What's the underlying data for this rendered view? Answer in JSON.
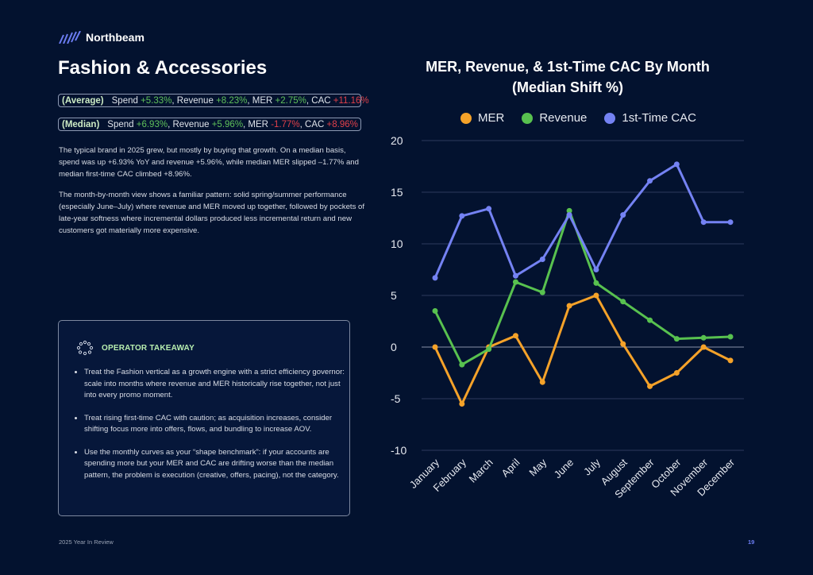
{
  "brand": {
    "name": "Northbeam",
    "logo_icon": "slashed-bars-logo",
    "logo_color": "#6b7cf2"
  },
  "title": "Fashion & Accessories",
  "stats": [
    {
      "tag": "(Average)",
      "spend_label": "Spend",
      "spend": "+5.33%",
      "revenue_label": ", Revenue",
      "revenue": "+8.23%",
      "mer_label": ", MER",
      "mer": "+2.75%",
      "cac_label": ", CAC",
      "cac": "+11.16%"
    },
    {
      "tag": "(Median)",
      "spend_label": "Spend",
      "spend": "+6.93%",
      "revenue_label": ", Revenue",
      "revenue": "+5.96%",
      "mer_label": ", MER",
      "mer": "-1.77%",
      "cac_label": ", CAC",
      "cac": "+8.96%"
    }
  ],
  "paragraphs": [
    "The typical brand in 2025 grew, but mostly by buying that growth. On a median basis, spend was up +6.93% YoY and revenue +5.96%, while median MER slipped –1.77% and median first-time CAC climbed +8.96%.",
    "The month-by-month view shows a familiar pattern: solid spring/summer performance (especially June–July) where revenue and MER moved up together, followed by pockets of late-year softness where incremental dollars produced less incremental return and new customers got materially more expensive."
  ],
  "takeaway": {
    "icon": "dotted-circle-icon",
    "title": "OPERATOR TAKEAWAY",
    "items": [
      "Treat the Fashion vertical as a growth engine with a strict efficiency governor: scale into months where revenue and MER historically rise together, not just into every promo moment.",
      "Treat rising first-time CAC with caution; as acquisition increases, consider shifting focus more into offers, flows, and bundling to increase AOV.",
      "Use the monthly curves as your “shape benchmark”: if your accounts are spending more but your MER and CAC are drifting worse than the median pattern, the problem is execution (creative, offers, pacing), not the category."
    ]
  },
  "footer": {
    "left": "2025 Year In Review",
    "page": "19"
  },
  "chart_data": {
    "type": "line",
    "title": "MER, Revenue, & 1st-Time CAC By Month (Median Shift %)",
    "title_lines": [
      "MER, Revenue, & 1st-Time CAC By Month",
      "(Median Shift %)"
    ],
    "categories": [
      "January",
      "February",
      "March",
      "April",
      "May",
      "June",
      "July",
      "August",
      "September",
      "October",
      "November",
      "December"
    ],
    "ylim": [
      -10,
      20
    ],
    "yticks": [
      "20",
      "15",
      "10",
      "5",
      "0",
      "-5",
      "-10"
    ],
    "grid": true,
    "legend_position": "top",
    "series": [
      {
        "name": "MER",
        "color": "#f5a229",
        "values": [
          0.0,
          -5.5,
          0.0,
          1.1,
          -3.4,
          4.0,
          5.0,
          0.3,
          -3.8,
          -2.5,
          0.0,
          -1.3
        ]
      },
      {
        "name": "Revenue",
        "color": "#58c14f",
        "values": [
          3.5,
          -1.7,
          -0.2,
          6.3,
          5.3,
          13.2,
          6.2,
          4.4,
          2.6,
          0.8,
          0.9,
          1.0
        ]
      },
      {
        "name": "1st-Time CAC",
        "color": "#7482f3",
        "values": [
          6.7,
          12.7,
          13.4,
          6.9,
          8.5,
          12.8,
          7.5,
          12.8,
          16.1,
          17.7,
          12.1,
          12.1
        ]
      }
    ]
  }
}
